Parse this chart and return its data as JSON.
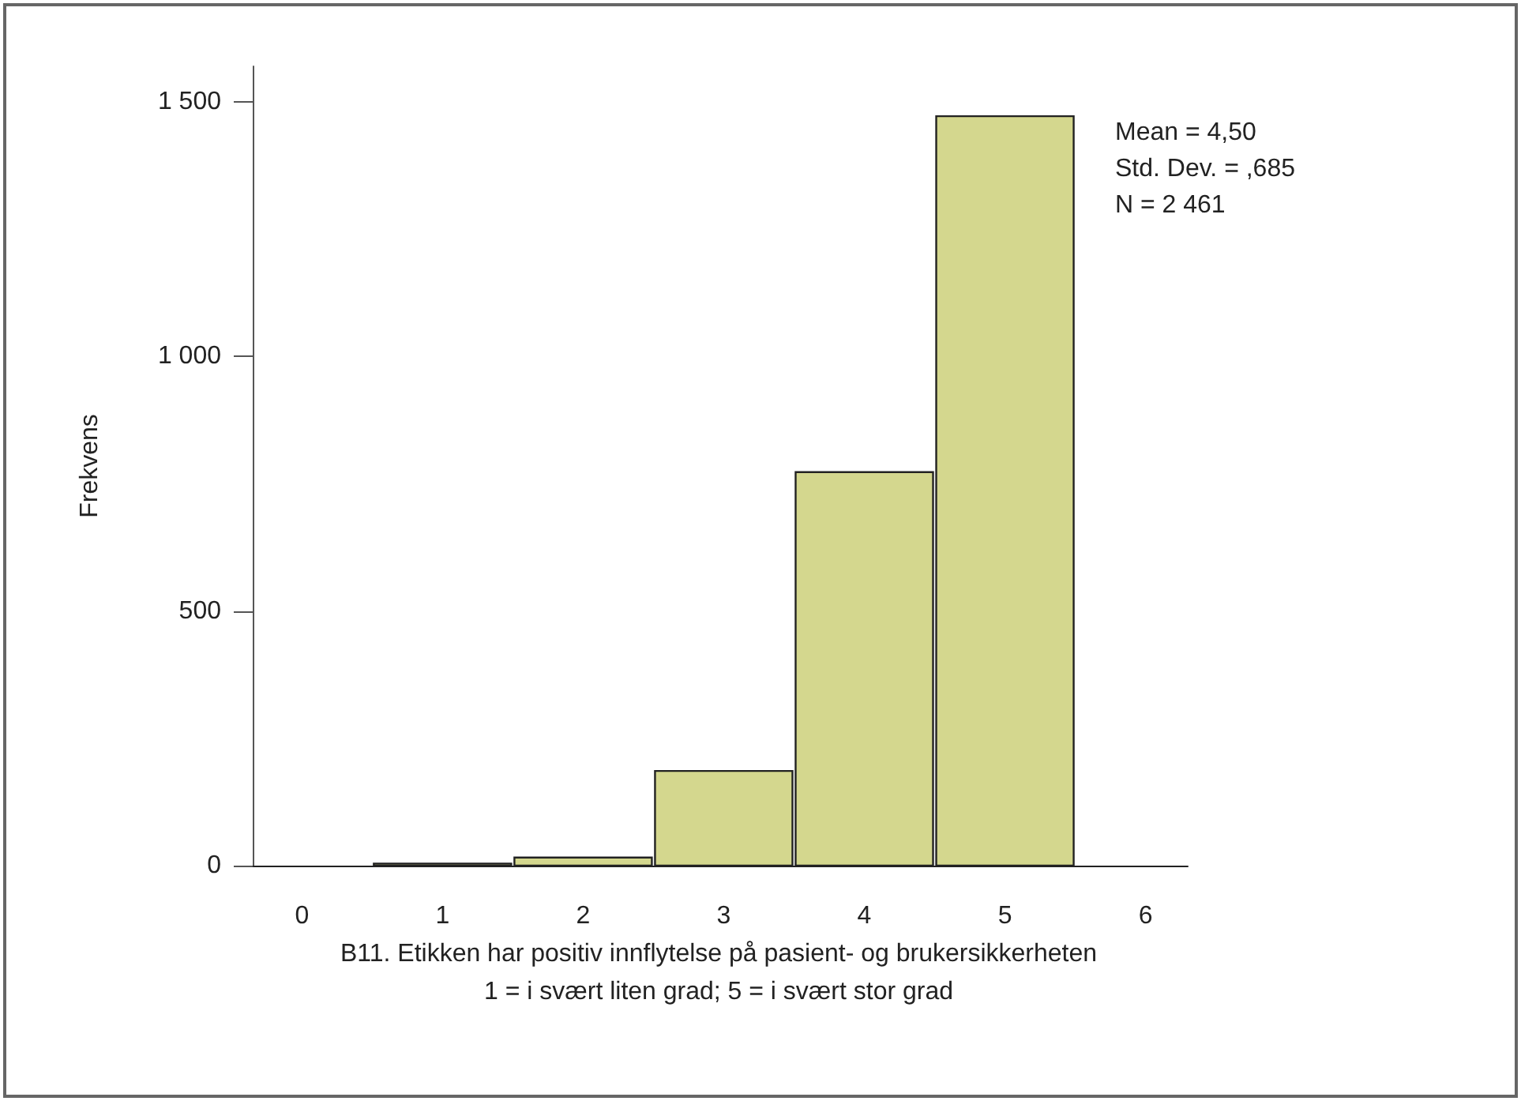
{
  "chart_data": {
    "type": "histogram",
    "xlabel": "B11. Etikken har positiv innflytelse på pasient- og brukersikkerheten",
    "ylabel": "Frekvens",
    "bins": [
      0.5,
      1.5,
      2.5,
      3.5,
      4.5,
      5.5
    ],
    "values": [
      4,
      16,
      186,
      773,
      1472
    ],
    "color": "#d4d78e",
    "xlim": [
      -0.35,
      6.3
    ],
    "xticks": [
      0,
      1,
      2,
      3,
      4,
      5,
      6
    ],
    "ylim": [
      0,
      1570
    ],
    "yticks": [
      0,
      {
        "value": 500,
        "label": "500"
      },
      {
        "value": 1000,
        "label": "1 000"
      },
      {
        "value": 1500,
        "label": "1 500"
      }
    ],
    "annotations": [
      "Mean = 4,50",
      "Std. Dev. = ,685",
      "N = 2 461",
      "1 = i svært liten grad; 5 = i svært stor grad"
    ],
    "grid": false
  }
}
